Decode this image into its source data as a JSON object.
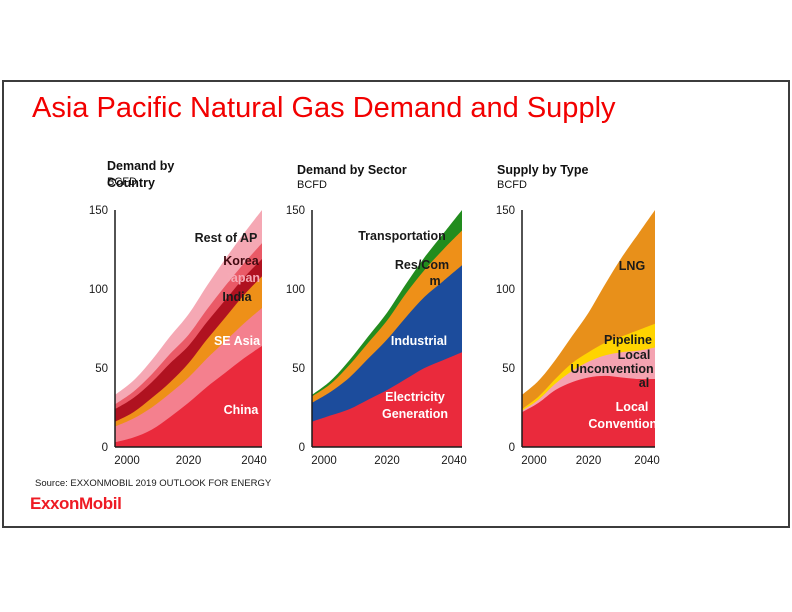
{
  "slide": {
    "title": "Asia Pacific Natural Gas Demand and Supply",
    "source": "Source: EXXONMOBIL 2019 OUTLOOK FOR ENERGY",
    "logo_text": "ExxonMobil"
  },
  "colors": {
    "title_red": "#F20000",
    "logo_red": "#EE1B24",
    "axis": "#1A1A1A",
    "slide_border": "#3C3C3C"
  },
  "chart_data": [
    {
      "type": "area",
      "stacked": true,
      "title": "Demand by Country",
      "title_lines": [
        "Demand by",
        "Country"
      ],
      "unit": "BCFD",
      "xlabel": "",
      "ylabel": "BCFD",
      "x": [
        2000,
        2005,
        2010,
        2015,
        2020,
        2025,
        2030,
        2035,
        2040
      ],
      "x_ticks": [
        2000,
        2020,
        2040
      ],
      "y_ticks": [
        0,
        50,
        100,
        150
      ],
      "ylim": [
        0,
        150
      ],
      "grid": false,
      "legend": "labels-inside-areas",
      "series": [
        {
          "name": "China",
          "color": "#EA2A3C",
          "label_color": "#FFFFFF",
          "values": [
            3,
            6,
            11,
            19,
            28,
            38,
            47,
            56,
            64
          ]
        },
        {
          "name": "SE Asia",
          "color": "#F4808E",
          "label_color": "#FFFFFF",
          "values": [
            10,
            12,
            14,
            15,
            16,
            18,
            20,
            22,
            24
          ]
        },
        {
          "name": "India",
          "color": "#EE9018",
          "label_color": "#1A1A1A",
          "values": [
            3,
            4,
            6,
            7,
            9,
            12,
            15,
            18,
            20
          ]
        },
        {
          "name": "Japan",
          "color": "#B01220",
          "label_color": "#F5A9B5",
          "values": [
            8,
            9,
            10,
            12,
            11,
            11,
            11,
            11,
            11
          ]
        },
        {
          "name": "Korea",
          "color": "#EA5A67",
          "label_color": "#40090F",
          "values": [
            3,
            4,
            5,
            6,
            7,
            8,
            9,
            9,
            10
          ]
        },
        {
          "name": "Rest of AP",
          "color": "#F5A8B4",
          "label_color": "#1A1A1A",
          "values": [
            6,
            7,
            9,
            11,
            13,
            15,
            17,
            19,
            21
          ]
        }
      ]
    },
    {
      "type": "area",
      "stacked": true,
      "title": "Demand by Sector",
      "title_lines": [
        "Demand by Sector"
      ],
      "unit": "BCFD",
      "xlabel": "",
      "ylabel": "BCFD",
      "x": [
        2000,
        2005,
        2010,
        2015,
        2020,
        2025,
        2030,
        2035,
        2040
      ],
      "x_ticks": [
        2000,
        2020,
        2040
      ],
      "y_ticks": [
        0,
        50,
        100,
        150
      ],
      "ylim": [
        0,
        150
      ],
      "grid": false,
      "legend": "labels-inside-areas",
      "series": [
        {
          "name": "Electricity Generation",
          "label_lines": [
            "Electricity",
            "Generation"
          ],
          "color": "#EA2A3C",
          "label_color": "#FFFFFF",
          "values": [
            16,
            20,
            24,
            30,
            36,
            43,
            50,
            55,
            60
          ]
        },
        {
          "name": "Industrial",
          "color": "#1C4C9C",
          "label_color": "#FFFFFF",
          "values": [
            12,
            15,
            20,
            26,
            32,
            39,
            45,
            50,
            55
          ]
        },
        {
          "name": "Res/Comm",
          "label_lines": [
            "Res/Com",
            "m"
          ],
          "color": "#EE9018",
          "label_color": "#1A1A1A",
          "values": [
            4,
            5,
            8,
            10,
            12,
            15,
            17,
            20,
            22
          ]
        },
        {
          "name": "Transportation",
          "color": "#228C1E",
          "label_color": "#1A1A1A",
          "values": [
            1,
            2,
            3,
            4,
            5,
            6,
            8,
            10,
            13
          ]
        }
      ]
    },
    {
      "type": "area",
      "stacked": true,
      "title": "Supply by Type",
      "title_lines": [
        "Supply by Type"
      ],
      "unit": "BCFD",
      "xlabel": "",
      "ylabel": "BCFD",
      "x": [
        2000,
        2005,
        2010,
        2015,
        2020,
        2025,
        2030,
        2035,
        2040
      ],
      "x_ticks": [
        2000,
        2020,
        2040
      ],
      "y_ticks": [
        0,
        50,
        100,
        150
      ],
      "ylim": [
        0,
        150
      ],
      "grid": false,
      "legend": "labels-inside-areas",
      "series": [
        {
          "name": "Local Conventional",
          "label_lines": [
            "Local",
            "Conventional"
          ],
          "color": "#EA2A3C",
          "label_color": "#FFFFFF",
          "values": [
            22,
            28,
            36,
            41,
            44,
            45,
            44,
            43,
            43
          ]
        },
        {
          "name": "Local Unconventional",
          "label_lines": [
            "Local",
            "Unconvention",
            "al"
          ],
          "color": "#F4A3B1",
          "label_color": "#1A1A1A",
          "values": [
            1,
            2,
            4,
            7,
            10,
            13,
            16,
            18,
            20
          ]
        },
        {
          "name": "Pipeline",
          "color": "#FFD400",
          "label_color": "#1A1A1A",
          "values": [
            1,
            2,
            3,
            5,
            6,
            8,
            10,
            13,
            15
          ]
        },
        {
          "name": "LNG",
          "color": "#E8901A",
          "label_color": "#1A1A1A",
          "values": [
            9,
            10,
            12,
            17,
            25,
            37,
            50,
            61,
            72
          ]
        }
      ]
    }
  ]
}
